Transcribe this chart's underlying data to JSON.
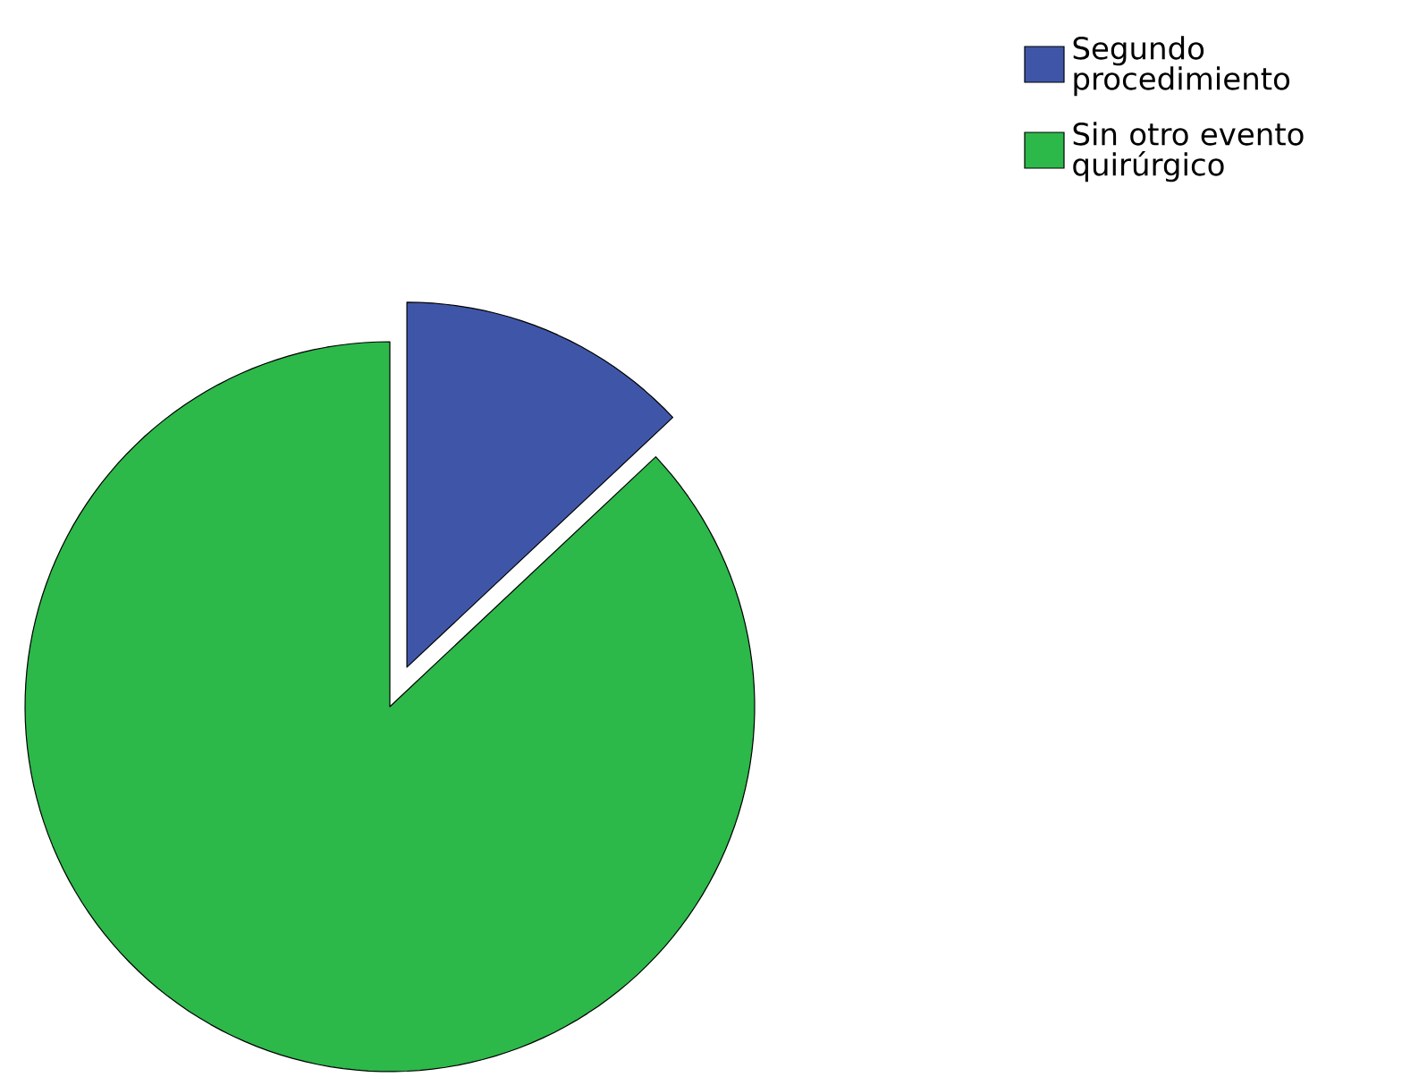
{
  "chart_data": {
    "type": "pie",
    "categories": [
      "Segundo procedimiento",
      "Sin otro evento quirúrgico"
    ],
    "values": [
      13,
      87
    ],
    "colors": [
      "#3f56a8",
      "#2db84a"
    ],
    "legend": "top right"
  }
}
